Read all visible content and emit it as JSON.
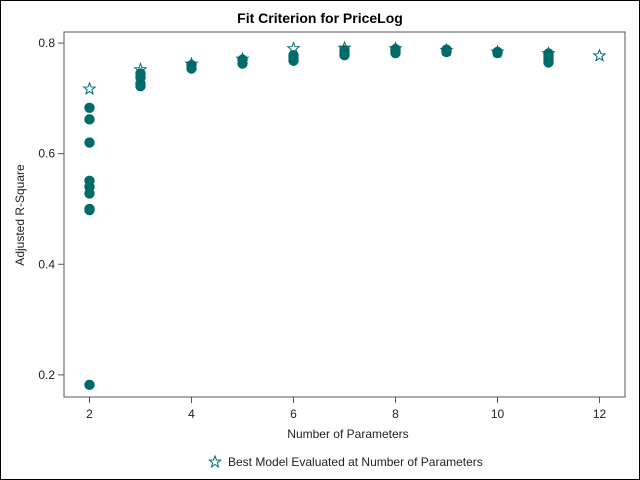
{
  "chart_data": {
    "type": "scatter",
    "title": "Fit Criterion for PriceLog",
    "xlabel": "Number of Parameters",
    "ylabel": "Adjusted R-Square",
    "xlim": [
      1.5,
      12.5
    ],
    "ylim": [
      0.16,
      0.82
    ],
    "xticks": [
      2,
      4,
      6,
      8,
      10,
      12
    ],
    "yticks": [
      0.2,
      0.4,
      0.6,
      0.8
    ],
    "ytick_labels": [
      "0.2",
      "0.4",
      "0.6",
      "0.8"
    ],
    "grid": false,
    "colors": {
      "marker": "#006b6b",
      "best": "#006b6b"
    },
    "series": [
      {
        "marker": "filled-circle",
        "points": [
          [
            2,
            0.683
          ],
          [
            2,
            0.662
          ],
          [
            2,
            0.62
          ],
          [
            2,
            0.551
          ],
          [
            2,
            0.54
          ],
          [
            2,
            0.528
          ],
          [
            2,
            0.5
          ],
          [
            2,
            0.498
          ],
          [
            2,
            0.182
          ],
          [
            3,
            0.745
          ],
          [
            3,
            0.738
          ],
          [
            3,
            0.727
          ],
          [
            3,
            0.722
          ],
          [
            4,
            0.76
          ],
          [
            4,
            0.754
          ],
          [
            5,
            0.77
          ],
          [
            5,
            0.763
          ],
          [
            6,
            0.778
          ],
          [
            6,
            0.773
          ],
          [
            6,
            0.768
          ],
          [
            7,
            0.787
          ],
          [
            7,
            0.782
          ],
          [
            7,
            0.778
          ],
          [
            8,
            0.789
          ],
          [
            8,
            0.786
          ],
          [
            8,
            0.782
          ],
          [
            9,
            0.788
          ],
          [
            9,
            0.784
          ],
          [
            10,
            0.784
          ],
          [
            10,
            0.782
          ],
          [
            11,
            0.781
          ],
          [
            11,
            0.776
          ],
          [
            11,
            0.77
          ],
          [
            11,
            0.765
          ]
        ]
      },
      {
        "name": "Best Model Evaluated at Number of Parameters",
        "marker": "star",
        "points": [
          [
            2,
            0.717
          ],
          [
            3,
            0.752
          ],
          [
            4,
            0.762
          ],
          [
            5,
            0.771
          ],
          [
            6,
            0.79
          ],
          [
            7,
            0.791
          ],
          [
            8,
            0.79
          ],
          [
            9,
            0.787
          ],
          [
            10,
            0.784
          ],
          [
            11,
            0.781
          ],
          [
            12,
            0.777
          ]
        ]
      }
    ],
    "legend": {
      "position": "bottom-center",
      "label": "Best Model Evaluated at Number of Parameters"
    }
  }
}
